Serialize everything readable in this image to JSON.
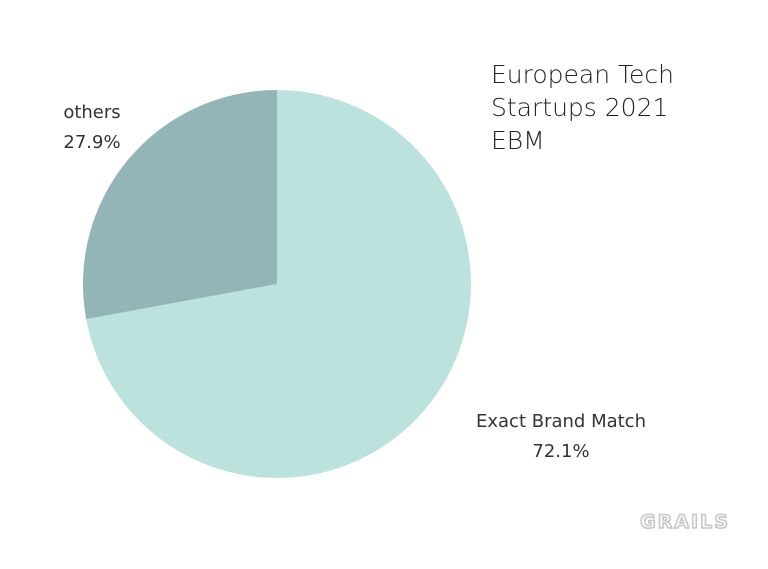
{
  "chart_data": {
    "type": "pie",
    "title": "European Tech Startups 2021 EBM",
    "title_lines": [
      "European Tech",
      "Startups 2021",
      "EBM"
    ],
    "slices": [
      {
        "label": "Exact Brand Match",
        "value": 72.1,
        "value_label": "72.1%",
        "color": "#bce2de"
      },
      {
        "label": "others",
        "value": 27.9,
        "value_label": "27.9%",
        "color": "#94b5b8"
      }
    ],
    "start_angle_deg": 0,
    "direction": "clockwise",
    "legend": "none"
  },
  "watermark": {
    "text": "GRAILS",
    "color": "#c4c8c8"
  }
}
